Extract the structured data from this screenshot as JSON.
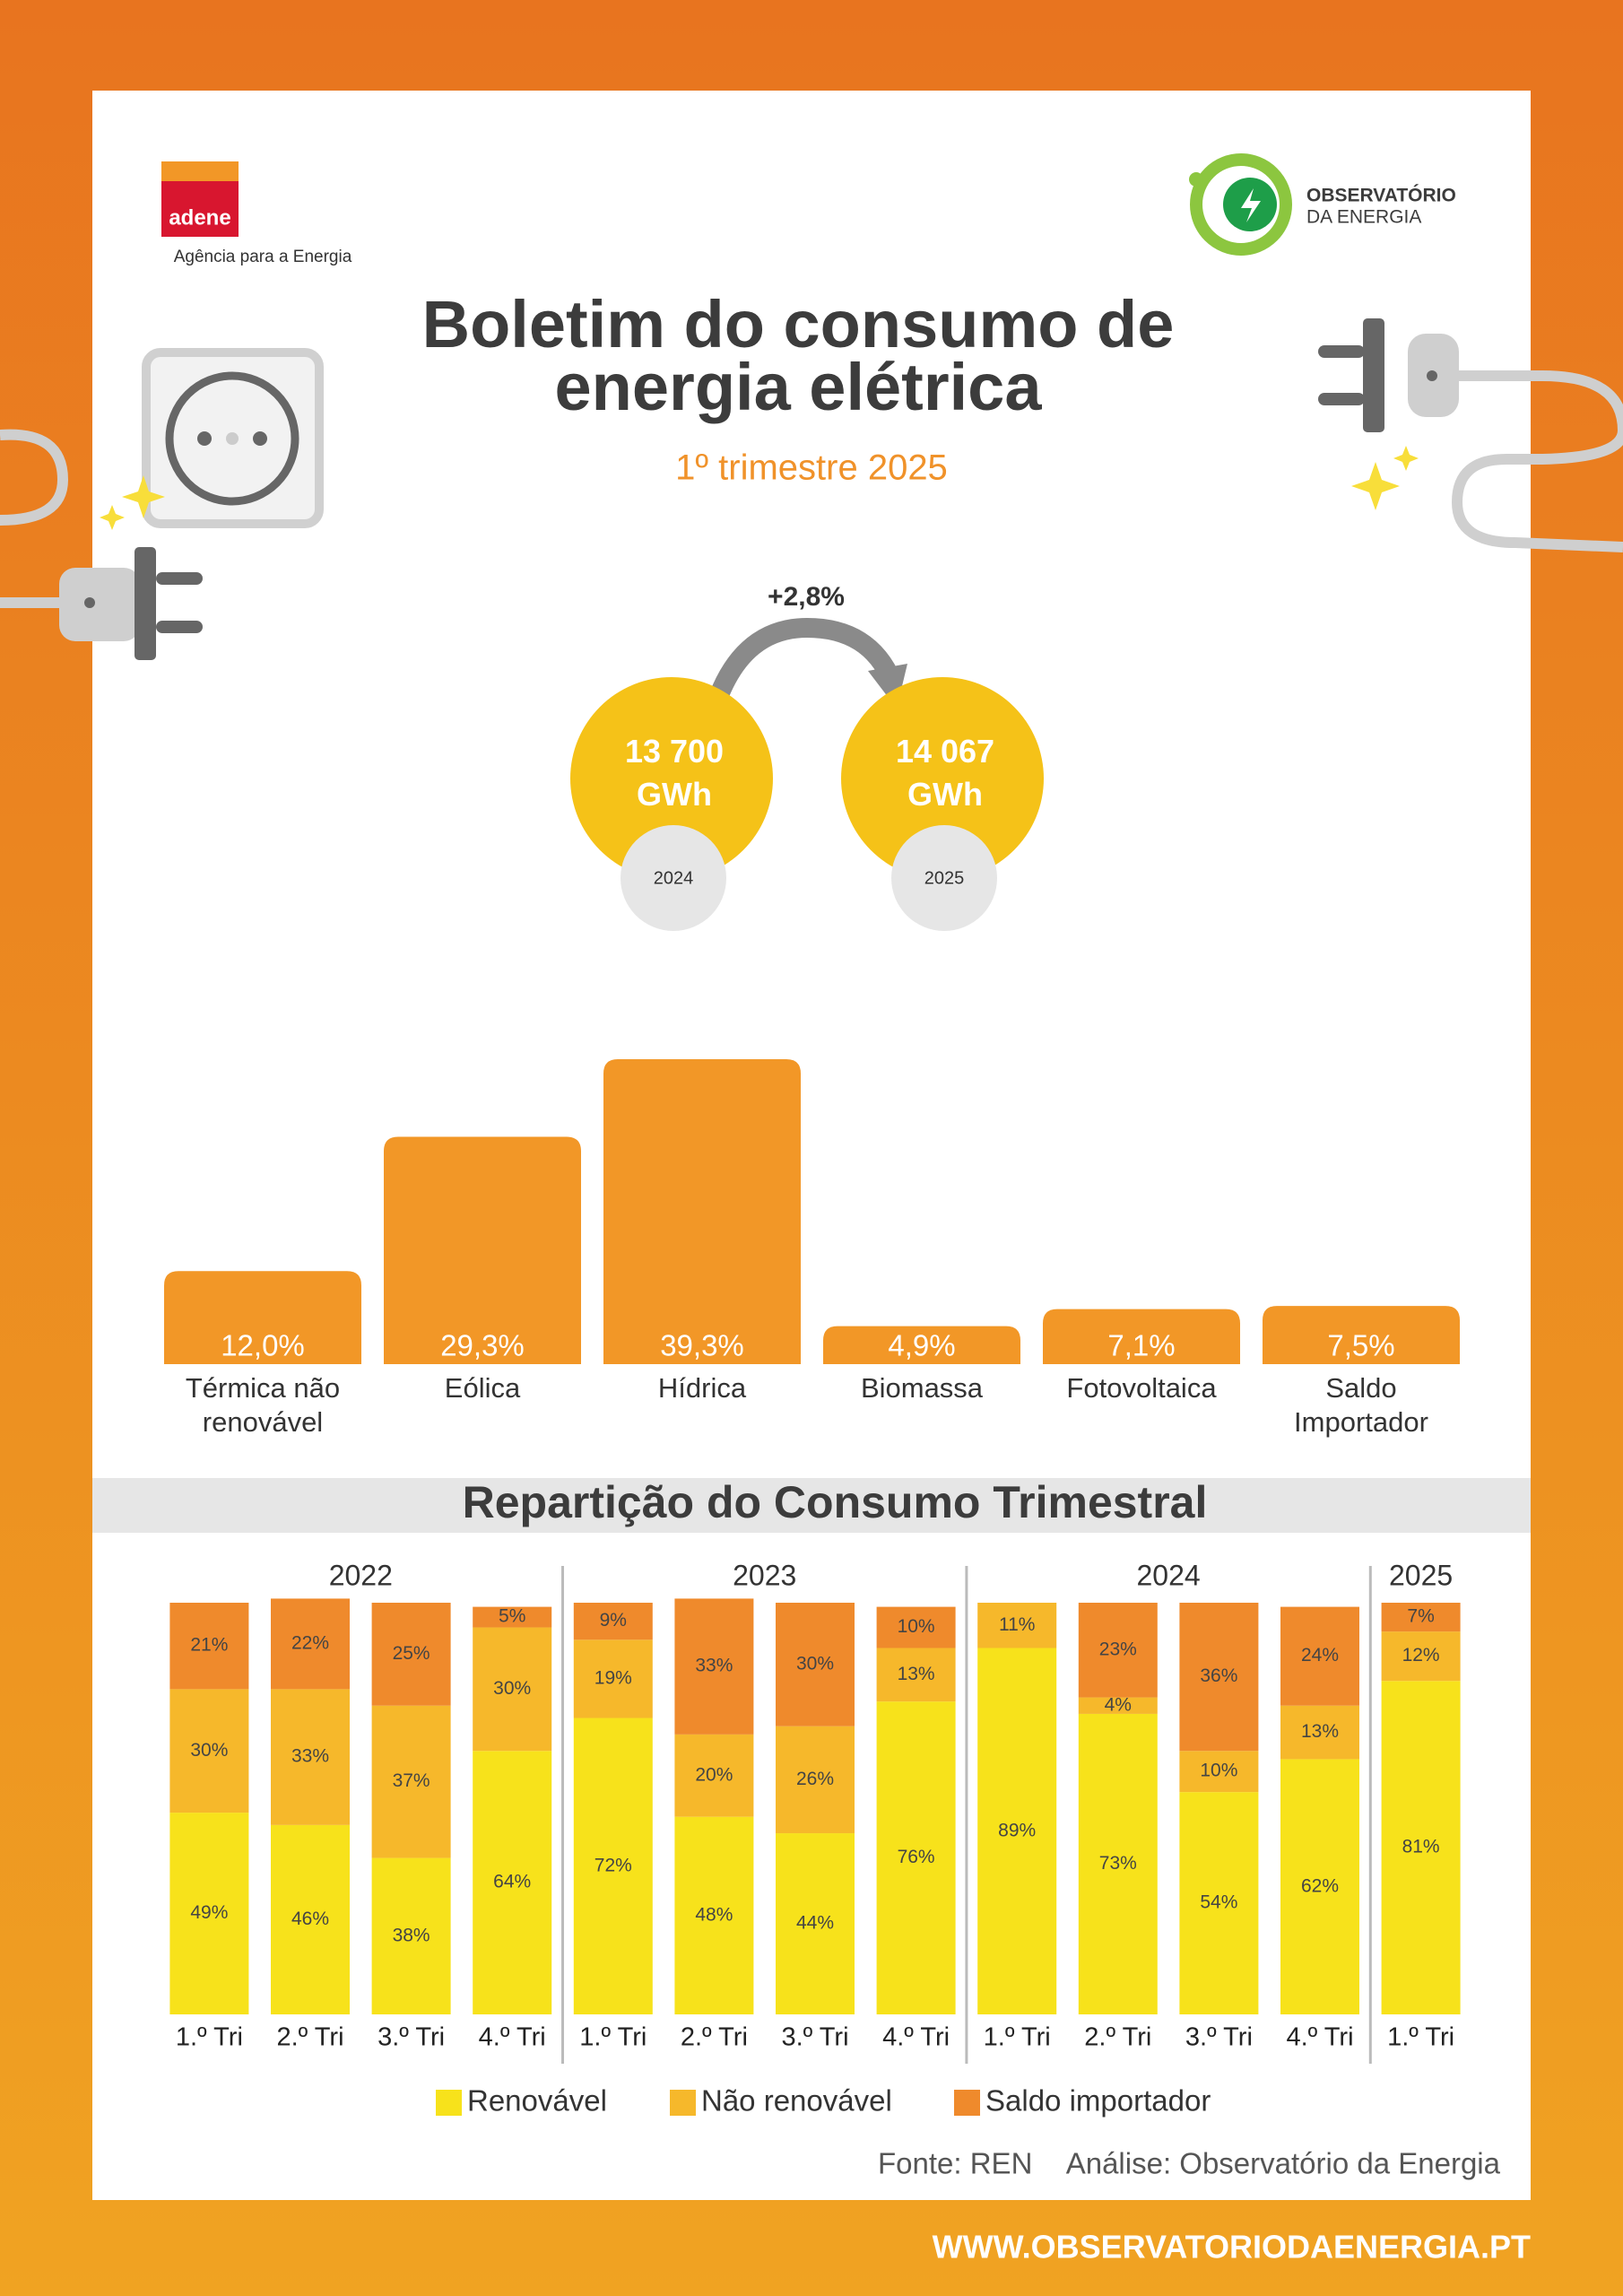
{
  "header": {
    "logo_left": "adene",
    "logo_left_caption": "Agência para a Energia",
    "logo_right_line1": "OBSERVATÓRIO",
    "logo_right_line2": "DA ENERGIA",
    "title": "Boletim do consumo de\nenergia elétrica",
    "subtitle": "1º trimestre 2025"
  },
  "comparison": {
    "change": "+2,8%",
    "items": [
      {
        "value": "13 700\nGWh",
        "year": "2024"
      },
      {
        "value": "14 067\nGWh",
        "year": "2025"
      }
    ]
  },
  "chart_data": [
    {
      "type": "bar",
      "categories": [
        "Térmica não\nrenovável",
        "Eólica",
        "Hídrica",
        "Biomassa",
        "Fotovoltaica",
        "Saldo\nImportador"
      ],
      "values": [
        12.0,
        29.3,
        39.3,
        4.9,
        7.1,
        7.5
      ],
      "value_labels": [
        "12,0%",
        "29,3%",
        "39,3%",
        "4,9%",
        "7,1%",
        "7,5%"
      ],
      "color": "#f29727"
    },
    {
      "type": "stacked_bar",
      "title": "Repartição do Consumo Trimestral",
      "groups": [
        {
          "name": "2022",
          "categories": [
            "1.º Tri",
            "2.º Tri",
            "3.º Tri",
            "4.º Tri"
          ]
        },
        {
          "name": "2023",
          "categories": [
            "1.º Tri",
            "2.º Tri",
            "3.º Tri",
            "4.º Tri"
          ]
        },
        {
          "name": "2024",
          "categories": [
            "1.º Tri",
            "2.º Tri",
            "3.º Tri",
            "4.º Tri"
          ]
        },
        {
          "name": "2025",
          "categories": [
            "1.º Tri"
          ]
        }
      ],
      "series": [
        {
          "name": "Renovável",
          "color": "#f7e21b",
          "values": [
            49,
            46,
            38,
            64,
            72,
            48,
            44,
            76,
            89,
            73,
            54,
            62,
            81
          ],
          "value_labels": [
            "49%",
            "46%",
            "38%",
            "64%",
            "72%",
            "48%",
            "44%",
            "76%",
            "89%",
            "73%",
            "54%",
            "62%",
            "81%"
          ]
        },
        {
          "name": "Não renovável",
          "color": "#f6b82b",
          "values": [
            30,
            33,
            37,
            30,
            19,
            20,
            26,
            13,
            11,
            4,
            10,
            13,
            12
          ],
          "value_labels": [
            "30%",
            "33%",
            "37%",
            "30%",
            "19%",
            "20%",
            "26%",
            "13%",
            "11%",
            "4%",
            "10%",
            "13%",
            "12%"
          ]
        },
        {
          "name": "Saldo importador",
          "color": "#ef8a2c",
          "values": [
            21,
            22,
            25,
            5,
            9,
            33,
            30,
            10,
            null,
            23,
            36,
            24,
            7
          ],
          "value_labels": [
            "21%",
            "22%",
            "25%",
            "5%",
            "9%",
            "33%",
            "30%",
            "10%",
            null,
            "23%",
            "36%",
            "24%",
            "7%"
          ]
        }
      ],
      "legend": "bottom"
    }
  ],
  "footer": {
    "source": "Fonte: REN",
    "analysis": "Análise: Observatório da Energia",
    "url": "WWW.OBSERVATORIODAENERGIA.PT"
  }
}
